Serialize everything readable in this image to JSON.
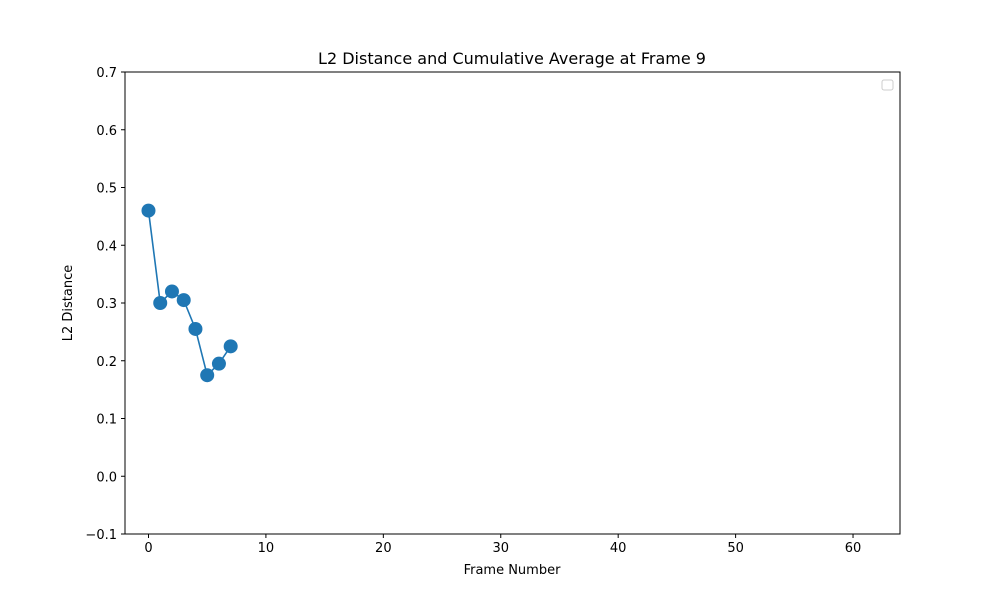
{
  "chart_data": {
    "type": "line",
    "title": "L2 Distance and Cumulative Average at Frame 9",
    "xlabel": "Frame Number",
    "ylabel": "L2 Distance",
    "xlim": [
      -2,
      64
    ],
    "ylim": [
      -0.1,
      0.7
    ],
    "x_ticks": [
      0,
      10,
      20,
      30,
      40,
      50,
      60
    ],
    "x_tick_labels": [
      "0",
      "10",
      "20",
      "30",
      "40",
      "50",
      "60"
    ],
    "y_ticks": [
      -0.1,
      0.0,
      0.1,
      0.2,
      0.3,
      0.4,
      0.5,
      0.6,
      0.7
    ],
    "y_tick_labels": [
      "−0.1",
      "0.0",
      "0.1",
      "0.2",
      "0.3",
      "0.4",
      "0.5",
      "0.6",
      "0.7"
    ],
    "grid": false,
    "legend": {
      "placement": "top-right",
      "entries": []
    },
    "series": [
      {
        "x": [
          0,
          1,
          2,
          3,
          4,
          5,
          6,
          7
        ],
        "values": [
          0.46,
          0.3,
          0.32,
          0.305,
          0.255,
          0.175,
          0.195,
          0.225
        ],
        "color": "#1f77b4",
        "marker": "circle"
      }
    ]
  }
}
